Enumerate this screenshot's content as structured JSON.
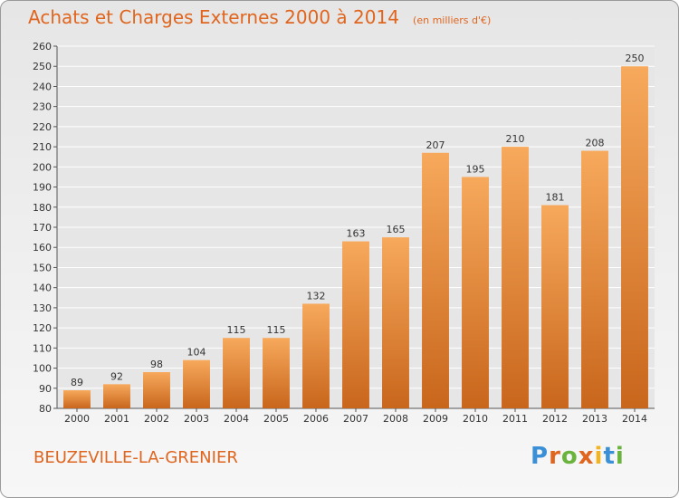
{
  "title": "Achats et Charges Externes 2000 à 2014",
  "unit": "(en milliers d'€)",
  "commune": "BEUZEVILLE-LA-GRENIER",
  "logo": {
    "text": "Proxiti",
    "letters": [
      {
        "ch": "P",
        "color": "#3b8fd6"
      },
      {
        "ch": "r",
        "color": "#e0651e"
      },
      {
        "ch": "o",
        "color": "#6ab43e"
      },
      {
        "ch": "x",
        "color": "#e0651e"
      },
      {
        "ch": "i",
        "color": "#f2b51d"
      },
      {
        "ch": "t",
        "color": "#3b8fd6"
      },
      {
        "ch": "i",
        "color": "#6ab43e"
      }
    ]
  },
  "colors": {
    "bar_light": "#f7a95c",
    "bar_dark": "#c8661c",
    "title": "#e0651e",
    "grid": "#ffffff"
  },
  "chart_data": {
    "type": "bar",
    "categories": [
      "2000",
      "2001",
      "2002",
      "2003",
      "2004",
      "2005",
      "2006",
      "2007",
      "2008",
      "2009",
      "2010",
      "2011",
      "2012",
      "2013",
      "2014"
    ],
    "values": [
      89,
      92,
      98,
      104,
      115,
      115,
      132,
      163,
      165,
      207,
      195,
      210,
      181,
      208,
      250
    ],
    "ylim": [
      80,
      260
    ],
    "yticks": [
      80,
      90,
      100,
      110,
      120,
      130,
      140,
      150,
      160,
      170,
      180,
      190,
      200,
      210,
      220,
      230,
      240,
      250,
      260
    ],
    "grid": true,
    "title": "Achats et Charges Externes 2000 à 2014",
    "xlabel": "",
    "ylabel": ""
  }
}
